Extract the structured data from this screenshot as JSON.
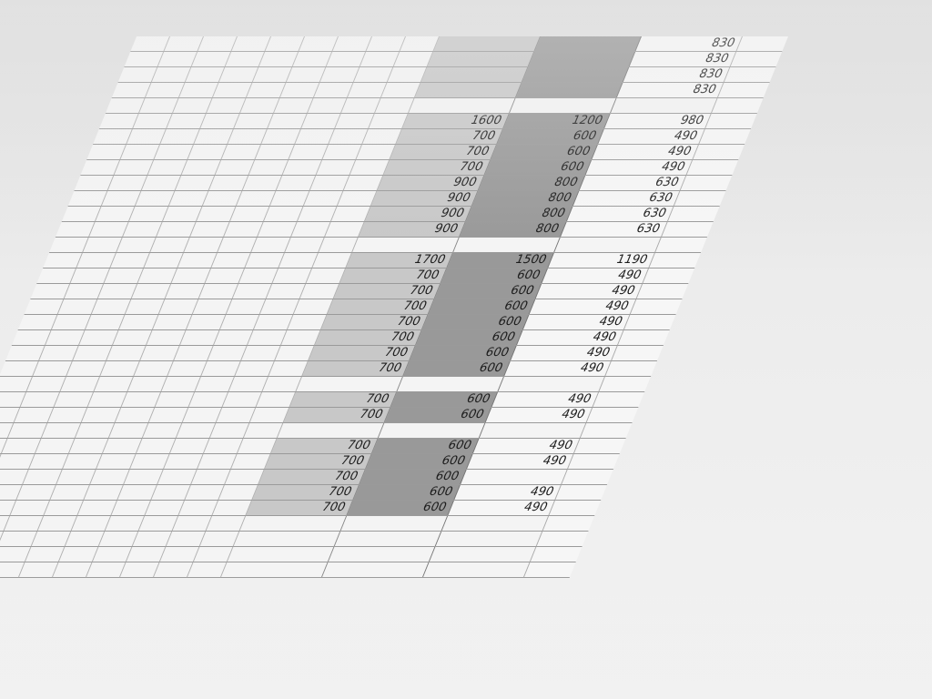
{
  "table": {
    "blocks": [
      {
        "col_a": [
          "",
          "",
          "",
          ""
        ],
        "col_b": [
          "",
          "",
          "",
          ""
        ],
        "col_c": [
          "830",
          "830",
          "830",
          "830"
        ]
      },
      {
        "col_a": [
          "1600",
          "700",
          "700",
          "700",
          "900",
          "900",
          "900",
          "900"
        ],
        "col_b": [
          "1200",
          "600",
          "600",
          "600",
          "800",
          "800",
          "800",
          "800"
        ],
        "col_c": [
          "980",
          "490",
          "490",
          "490",
          "630",
          "630",
          "630",
          "630"
        ]
      },
      {
        "col_a": [
          "1700",
          "700",
          "700",
          "700",
          "700",
          "700",
          "700",
          "700"
        ],
        "col_b": [
          "1500",
          "600",
          "600",
          "600",
          "600",
          "600",
          "600",
          "600"
        ],
        "col_c": [
          "1190",
          "490",
          "490",
          "490",
          "490",
          "490",
          "490",
          "490"
        ]
      },
      {
        "col_a": [
          "700",
          "700"
        ],
        "col_b": [
          "600",
          "600"
        ],
        "col_c": [
          "490",
          "490"
        ]
      },
      {
        "col_a": [
          "700",
          "700",
          "700",
          "700",
          "700"
        ],
        "col_b": [
          "600",
          "600",
          "600",
          "600",
          "600"
        ],
        "col_c": [
          "490",
          "490",
          "",
          "490",
          "490"
        ]
      }
    ]
  },
  "colors": {
    "col_a_fill": "#c8c8c8",
    "col_b_fill": "#999999",
    "paper": "#f4f4f4"
  }
}
